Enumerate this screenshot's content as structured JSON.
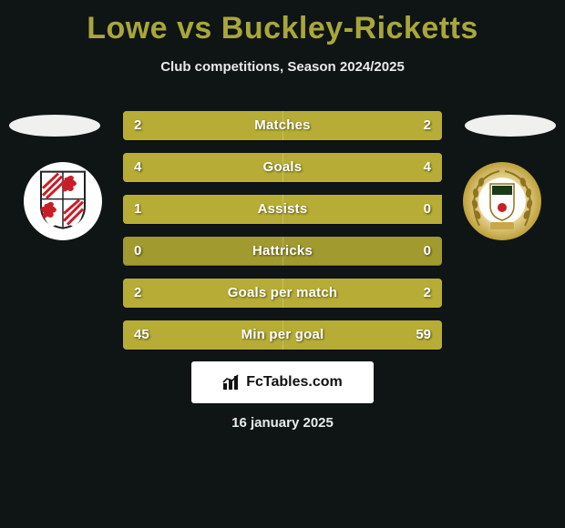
{
  "title": "Lowe vs Buckley-Ricketts",
  "subtitle": "Club competitions, Season 2024/2025",
  "brand": "FcTables.com",
  "date_text": "16 january 2025",
  "colors": {
    "background": "#0f1515",
    "title": "#a9a63a",
    "bar_base": "#a19a2e",
    "bar_highlight": "#b7ad36",
    "text": "#ffffff",
    "subtitle_text": "#eaeaea",
    "footer_bg": "#ffffff",
    "footer_text": "#111111"
  },
  "left_club_shield": {
    "bg": "#ffffff",
    "red": "#c81e28",
    "outline": "#222222"
  },
  "right_club_badge": {
    "outer": "#bfa13a",
    "inner": "#fdfdfb"
  },
  "stats": [
    {
      "label": "Matches",
      "left_val": "2",
      "right_val": "2",
      "left_pct": 50,
      "right_pct": 50
    },
    {
      "label": "Goals",
      "left_val": "4",
      "right_val": "4",
      "left_pct": 50,
      "right_pct": 50
    },
    {
      "label": "Assists",
      "left_val": "1",
      "right_val": "0",
      "left_pct": 100,
      "right_pct": 0
    },
    {
      "label": "Hattricks",
      "left_val": "0",
      "right_val": "0",
      "left_pct": 0,
      "right_pct": 0
    },
    {
      "label": "Goals per match",
      "left_val": "2",
      "right_val": "2",
      "left_pct": 50,
      "right_pct": 50
    },
    {
      "label": "Min per goal",
      "left_val": "45",
      "right_val": "59",
      "left_pct": 43,
      "right_pct": 57
    }
  ]
}
